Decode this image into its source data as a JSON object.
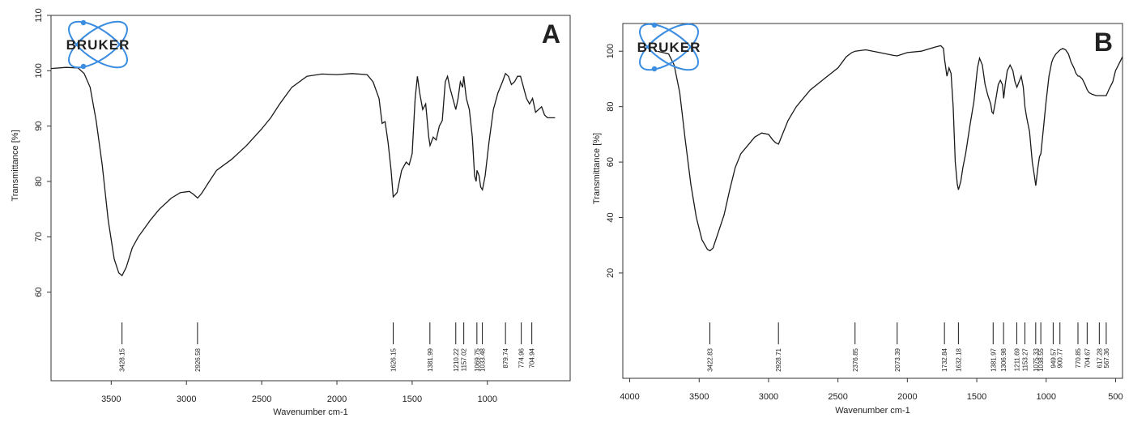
{
  "chart_data": [
    {
      "type": "line",
      "panel_label": "A",
      "logo_text": "BRUKER",
      "xlabel": "Wavenumber cm-1",
      "ylabel": "Transmittance [%]",
      "xlim": [
        3900,
        450
      ],
      "ylim": [
        44,
        110
      ],
      "x_ticks": [
        3500,
        3000,
        2500,
        2000,
        1500,
        1000
      ],
      "y_ticks": [
        60,
        70,
        80,
        90,
        100,
        110
      ],
      "y_tick_labels": [
        "60",
        "70",
        "80",
        "90",
        "100",
        "110"
      ],
      "series": [
        {
          "points": [
            [
              3900,
              100.4
            ],
            [
              3800,
              100.6
            ],
            [
              3720,
              100.5
            ],
            [
              3680,
              99.5
            ],
            [
              3640,
              97
            ],
            [
              3600,
              91
            ],
            [
              3560,
              83
            ],
            [
              3520,
              73
            ],
            [
              3480,
              66
            ],
            [
              3450,
              63.5
            ],
            [
              3428,
              63
            ],
            [
              3400,
              64.5
            ],
            [
              3360,
              68
            ],
            [
              3320,
              70
            ],
            [
              3280,
              71.5
            ],
            [
              3240,
              73
            ],
            [
              3180,
              75
            ],
            [
              3100,
              77
            ],
            [
              3040,
              78
            ],
            [
              2980,
              78.2
            ],
            [
              2950,
              77.6
            ],
            [
              2926,
              77
            ],
            [
              2900,
              77.8
            ],
            [
              2860,
              79.5
            ],
            [
              2800,
              82
            ],
            [
              2700,
              84
            ],
            [
              2600,
              86.5
            ],
            [
              2500,
              89.5
            ],
            [
              2440,
              91.5
            ],
            [
              2380,
              94
            ],
            [
              2300,
              97
            ],
            [
              2200,
              99
            ],
            [
              2100,
              99.4
            ],
            [
              2000,
              99.3
            ],
            [
              1900,
              99.5
            ],
            [
              1800,
              99.3
            ],
            [
              1760,
              98
            ],
            [
              1720,
              95
            ],
            [
              1700,
              90.5
            ],
            [
              1680,
              90.8
            ],
            [
              1660,
              87
            ],
            [
              1640,
              82
            ],
            [
              1626,
              77.2
            ],
            [
              1600,
              78
            ],
            [
              1570,
              82
            ],
            [
              1540,
              83.5
            ],
            [
              1520,
              83
            ],
            [
              1500,
              85
            ],
            [
              1480,
              95
            ],
            [
              1465,
              99
            ],
            [
              1450,
              96
            ],
            [
              1430,
              93
            ],
            [
              1410,
              94
            ],
            [
              1390,
              88
            ],
            [
              1381,
              86.5
            ],
            [
              1360,
              88
            ],
            [
              1340,
              87.5
            ],
            [
              1320,
              90
            ],
            [
              1300,
              91
            ],
            [
              1280,
              98
            ],
            [
              1265,
              99
            ],
            [
              1250,
              97
            ],
            [
              1230,
              95
            ],
            [
              1210,
              93
            ],
            [
              1195,
              95
            ],
            [
              1180,
              98
            ],
            [
              1165,
              97
            ],
            [
              1157,
              99
            ],
            [
              1140,
              95
            ],
            [
              1120,
              93
            ],
            [
              1100,
              88
            ],
            [
              1085,
              81
            ],
            [
              1075,
              80
            ],
            [
              1069,
              82
            ],
            [
              1055,
              81
            ],
            [
              1045,
              79
            ],
            [
              1033,
              78.5
            ],
            [
              1015,
              81
            ],
            [
              990,
              87
            ],
            [
              960,
              93
            ],
            [
              930,
              96
            ],
            [
              900,
              98
            ],
            [
              880,
              99.5
            ],
            [
              860,
              99
            ],
            [
              840,
              97.5
            ],
            [
              820,
              98
            ],
            [
              800,
              99
            ],
            [
              780,
              99
            ],
            [
              760,
              97
            ],
            [
              740,
              95
            ],
            [
              720,
              94
            ],
            [
              700,
              95
            ],
            [
              680,
              92.5
            ],
            [
              660,
              93
            ],
            [
              640,
              93.5
            ],
            [
              620,
              92
            ],
            [
              600,
              91.5
            ],
            [
              580,
              91.5
            ],
            [
              550,
              91.5
            ]
          ]
        }
      ],
      "peak_labels": [
        {
          "x": 3428.15,
          "text": "3428.15"
        },
        {
          "x": 2926.58,
          "text": "2926.58"
        },
        {
          "x": 1626.15,
          "text": "1626.15"
        },
        {
          "x": 1381.99,
          "text": "1381.99"
        },
        {
          "x": 1210.22,
          "text": "1210.22"
        },
        {
          "x": 1157.02,
          "text": "1157.02"
        },
        {
          "x": 1069.75,
          "text": "1069.75"
        },
        {
          "x": 1033.48,
          "text": "1033.48"
        },
        {
          "x": 879.74,
          "text": "879.74"
        },
        {
          "x": 774.96,
          "text": "774.96"
        },
        {
          "x": 704.94,
          "text": "704.94"
        }
      ]
    },
    {
      "type": "line",
      "panel_label": "B",
      "logo_text": "BRUKER",
      "xlabel": "Wavenumber cm-1",
      "ylabel": "Transmittance [%]",
      "xlim": [
        4050,
        450
      ],
      "ylim": [
        -18,
        110
      ],
      "x_ticks": [
        4000,
        3500,
        3000,
        2500,
        2000,
        1500,
        1000,
        500
      ],
      "y_ticks": [
        20,
        40,
        60,
        80,
        100
      ],
      "y_tick_labels": [
        "20",
        "40",
        "60",
        "80",
        "100"
      ],
      "series": [
        {
          "points": [
            [
              3800,
              100
            ],
            [
              3720,
              99
            ],
            [
              3680,
              95
            ],
            [
              3640,
              85
            ],
            [
              3600,
              68
            ],
            [
              3560,
              52
            ],
            [
              3520,
              40
            ],
            [
              3480,
              32
            ],
            [
              3440,
              28.5
            ],
            [
              3422,
              28
            ],
            [
              3400,
              29
            ],
            [
              3360,
              35
            ],
            [
              3320,
              41
            ],
            [
              3280,
              50
            ],
            [
              3240,
              58
            ],
            [
              3200,
              63
            ],
            [
              3150,
              66
            ],
            [
              3100,
              69
            ],
            [
              3050,
              70.5
            ],
            [
              3000,
              70
            ],
            [
              2970,
              68
            ],
            [
              2950,
              67
            ],
            [
              2928,
              66.5
            ],
            [
              2900,
              70
            ],
            [
              2860,
              75
            ],
            [
              2800,
              80
            ],
            [
              2700,
              86
            ],
            [
              2600,
              90
            ],
            [
              2500,
              94
            ],
            [
              2440,
              98
            ],
            [
              2400,
              99.5
            ],
            [
              2376,
              100
            ],
            [
              2300,
              100.5
            ],
            [
              2200,
              99.5
            ],
            [
              2100,
              98.5
            ],
            [
              2073,
              98.3
            ],
            [
              2000,
              99.5
            ],
            [
              1900,
              100
            ],
            [
              1800,
              101.5
            ],
            [
              1760,
              102
            ],
            [
              1740,
              101
            ],
            [
              1732,
              97
            ],
            [
              1715,
              91
            ],
            [
              1700,
              94
            ],
            [
              1685,
              92
            ],
            [
              1670,
              80
            ],
            [
              1655,
              60
            ],
            [
              1640,
              52
            ],
            [
              1632,
              50
            ],
            [
              1615,
              53
            ],
            [
              1600,
              58
            ],
            [
              1580,
              63
            ],
            [
              1550,
              73
            ],
            [
              1520,
              82
            ],
            [
              1495,
              94
            ],
            [
              1480,
              97.5
            ],
            [
              1460,
              95
            ],
            [
              1440,
              88
            ],
            [
              1420,
              84
            ],
            [
              1400,
              81
            ],
            [
              1390,
              78
            ],
            [
              1381,
              77.5
            ],
            [
              1365,
              82
            ],
            [
              1345,
              88
            ],
            [
              1330,
              89.5
            ],
            [
              1315,
              88
            ],
            [
              1306,
              83
            ],
            [
              1295,
              88
            ],
            [
              1280,
              93
            ],
            [
              1260,
              95
            ],
            [
              1240,
              93
            ],
            [
              1225,
              89
            ],
            [
              1211,
              87
            ],
            [
              1195,
              89
            ],
            [
              1180,
              91
            ],
            [
              1165,
              87
            ],
            [
              1153,
              80
            ],
            [
              1140,
              76
            ],
            [
              1120,
              71
            ],
            [
              1100,
              60
            ],
            [
              1085,
              55
            ],
            [
              1075,
              51.5
            ],
            [
              1060,
              58
            ],
            [
              1048,
              62
            ],
            [
              1038,
              63
            ],
            [
              1020,
              72
            ],
            [
              1000,
              82
            ],
            [
              980,
              91
            ],
            [
              960,
              96
            ],
            [
              949,
              97.5
            ],
            [
              930,
              99
            ],
            [
              910,
              100
            ],
            [
              900,
              100.5
            ],
            [
              880,
              101
            ],
            [
              860,
              100.5
            ],
            [
              840,
              99
            ],
            [
              820,
              96
            ],
            [
              800,
              94
            ],
            [
              785,
              92
            ],
            [
              770,
              91
            ],
            [
              760,
              91
            ],
            [
              740,
              90
            ],
            [
              720,
              88
            ],
            [
              704,
              86
            ],
            [
              690,
              85
            ],
            [
              670,
              84.5
            ],
            [
              640,
              84
            ],
            [
              617,
              84
            ],
            [
              600,
              84
            ],
            [
              567,
              84
            ],
            [
              550,
              86
            ],
            [
              520,
              89
            ],
            [
              500,
              93
            ],
            [
              470,
              96
            ],
            [
              450,
              98
            ]
          ]
        }
      ],
      "peak_labels": [
        {
          "x": 3422.83,
          "text": "3422.83"
        },
        {
          "x": 2928.71,
          "text": "2928.71"
        },
        {
          "x": 2376.85,
          "text": "2376.85"
        },
        {
          "x": 2073.39,
          "text": "2073.39"
        },
        {
          "x": 1732.84,
          "text": "1732.84"
        },
        {
          "x": 1632.18,
          "text": "1632.18"
        },
        {
          "x": 1381.97,
          "text": "1381.97"
        },
        {
          "x": 1306.98,
          "text": "1306.98"
        },
        {
          "x": 1211.69,
          "text": "1211.69"
        },
        {
          "x": 1153.27,
          "text": "1153.27"
        },
        {
          "x": 1075.33,
          "text": "1075.33"
        },
        {
          "x": 1038.55,
          "text": "1038.55"
        },
        {
          "x": 949.57,
          "text": "949.57"
        },
        {
          "x": 900.77,
          "text": "900.77"
        },
        {
          "x": 770.85,
          "text": "770.85"
        },
        {
          "x": 704.67,
          "text": "704.67"
        },
        {
          "x": 617.28,
          "text": "617.28"
        },
        {
          "x": 567.36,
          "text": "567.36"
        }
      ]
    }
  ],
  "colors": {
    "line": "#1a1a1a",
    "axis": "#333333",
    "logo": "#3a8de0"
  }
}
